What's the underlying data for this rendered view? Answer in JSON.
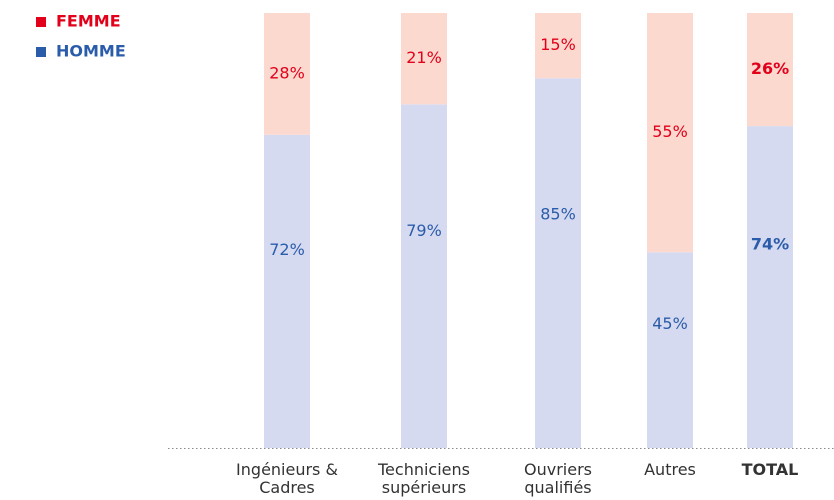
{
  "chart_data": {
    "type": "stacked_bar",
    "categories": [
      "Ingénieurs & Cadres",
      "Techniciens supérieurs",
      "Ouvriers qualifiés",
      "Autres",
      "TOTAL"
    ],
    "series": [
      {
        "name": "HOMME",
        "color": "#d6daf0",
        "label_color": "#2a5caa",
        "values": [
          72,
          79,
          85,
          45,
          74
        ],
        "value_labels": [
          "72%",
          "79%",
          "85%",
          "45%",
          "74%"
        ]
      },
      {
        "name": "FEMME",
        "color": "#fbd9cf",
        "label_color": "#e2001a",
        "values": [
          28,
          21,
          15,
          55,
          26
        ],
        "value_labels": [
          "28%",
          "21%",
          "15%",
          "55%",
          "26%"
        ]
      }
    ],
    "ylim": [
      0,
      100
    ]
  }
}
